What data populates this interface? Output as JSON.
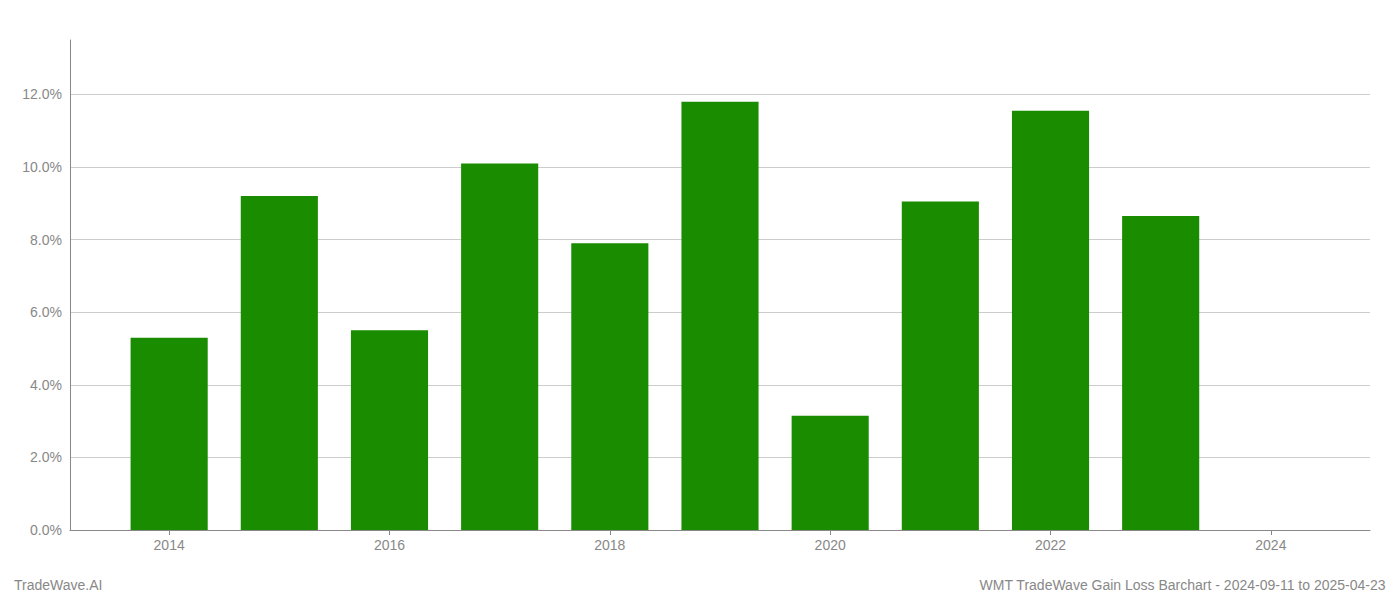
{
  "chart_data": {
    "type": "bar",
    "x": [
      2014,
      2015,
      2016,
      2017,
      2018,
      2019,
      2020,
      2021,
      2022,
      2023
    ],
    "values": [
      0.053,
      0.092,
      0.055,
      0.101,
      0.079,
      0.118,
      0.0315,
      0.0905,
      0.1155,
      0.0865
    ],
    "color": "#1a8c00",
    "xlim": [
      2013.1,
      2024.9
    ],
    "xticks": [
      2014,
      2016,
      2018,
      2020,
      2022,
      2024
    ],
    "ylim": [
      0,
      0.135
    ],
    "yticks": [
      {
        "value": 0.0,
        "label": "0.0%"
      },
      {
        "value": 0.02,
        "label": "2.0%"
      },
      {
        "value": 0.04,
        "label": "4.0%"
      },
      {
        "value": 0.06,
        "label": "6.0%"
      },
      {
        "value": 0.08,
        "label": "8.0%"
      },
      {
        "value": 0.1,
        "label": "10.0%"
      },
      {
        "value": 0.12,
        "label": "12.0%"
      }
    ],
    "grid": true,
    "annotations": [
      "TradeWave.AI",
      "WMT TradeWave Gain Loss Barchart - 2024-09-11 to 2025-04-23"
    ]
  }
}
